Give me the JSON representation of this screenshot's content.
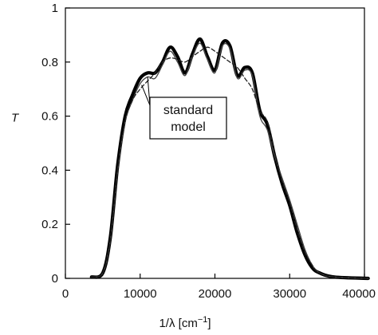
{
  "chart_data": {
    "type": "line",
    "xlabel_main": "1/λ [cm",
    "xlabel_sup": "−1",
    "xlabel_end": "]",
    "ylabel": "T",
    "xlim": [
      0,
      40000
    ],
    "ylim": [
      0,
      1
    ],
    "x_ticks": [
      "0",
      "10000",
      "20000",
      "30000",
      "40000"
    ],
    "y_ticks": [
      "0",
      "0.2",
      "0.4",
      "0.6",
      "0.8",
      "1"
    ],
    "x_tick_values": [
      0,
      10000,
      20000,
      30000,
      40000
    ],
    "y_tick_values": [
      0,
      0.2,
      0.4,
      0.6,
      0.8,
      1
    ],
    "legend": {
      "labels": [
        "standard",
        "model"
      ],
      "placement": "center-left"
    },
    "series": [
      {
        "style": "thick",
        "color": "#000000",
        "points": [
          [
            3500,
            0.005
          ],
          [
            5000,
            0.02
          ],
          [
            6000,
            0.15
          ],
          [
            7000,
            0.42
          ],
          [
            8000,
            0.6
          ],
          [
            9000,
            0.68
          ],
          [
            10000,
            0.74
          ],
          [
            11000,
            0.76
          ],
          [
            12000,
            0.76
          ],
          [
            13000,
            0.8
          ],
          [
            14000,
            0.855
          ],
          [
            15000,
            0.82
          ],
          [
            16000,
            0.76
          ],
          [
            17000,
            0.83
          ],
          [
            18000,
            0.885
          ],
          [
            19000,
            0.82
          ],
          [
            20000,
            0.77
          ],
          [
            21000,
            0.87
          ],
          [
            22000,
            0.86
          ],
          [
            23000,
            0.75
          ],
          [
            24000,
            0.78
          ],
          [
            25000,
            0.76
          ],
          [
            26000,
            0.62
          ],
          [
            27000,
            0.57
          ],
          [
            28000,
            0.45
          ],
          [
            29000,
            0.35
          ],
          [
            30000,
            0.27
          ],
          [
            31000,
            0.17
          ],
          [
            32000,
            0.09
          ],
          [
            33000,
            0.04
          ],
          [
            34000,
            0.02
          ],
          [
            36000,
            0.005
          ],
          [
            40500,
            0.0
          ]
        ]
      },
      {
        "style": "thin",
        "color": "#444444",
        "points": [
          [
            3500,
            0.005
          ],
          [
            5000,
            0.02
          ],
          [
            6000,
            0.14
          ],
          [
            7000,
            0.4
          ],
          [
            8000,
            0.58
          ],
          [
            9000,
            0.66
          ],
          [
            10000,
            0.72
          ],
          [
            11000,
            0.745
          ],
          [
            12000,
            0.74
          ],
          [
            13000,
            0.79
          ],
          [
            14000,
            0.84
          ],
          [
            15000,
            0.8
          ],
          [
            16000,
            0.75
          ],
          [
            17000,
            0.82
          ],
          [
            18000,
            0.87
          ],
          [
            19000,
            0.81
          ],
          [
            20000,
            0.76
          ],
          [
            21000,
            0.86
          ],
          [
            22000,
            0.85
          ],
          [
            23000,
            0.74
          ],
          [
            24000,
            0.77
          ],
          [
            25000,
            0.75
          ],
          [
            26000,
            0.6
          ],
          [
            27000,
            0.55
          ],
          [
            28000,
            0.45
          ],
          [
            29000,
            0.37
          ],
          [
            30000,
            0.29
          ],
          [
            31000,
            0.2
          ],
          [
            32000,
            0.11
          ],
          [
            33000,
            0.05
          ],
          [
            34000,
            0.02
          ],
          [
            36000,
            0.005
          ],
          [
            40500,
            0.0
          ]
        ]
      },
      {
        "style": "dashed",
        "color": "#222222",
        "points": [
          [
            3500,
            0.005
          ],
          [
            5000,
            0.02
          ],
          [
            6000,
            0.14
          ],
          [
            7000,
            0.4
          ],
          [
            8000,
            0.58
          ],
          [
            9000,
            0.66
          ],
          [
            10000,
            0.7
          ],
          [
            11000,
            0.73
          ],
          [
            12000,
            0.76
          ],
          [
            13000,
            0.8
          ],
          [
            14000,
            0.815
          ],
          [
            15000,
            0.81
          ],
          [
            16000,
            0.8
          ],
          [
            17000,
            0.82
          ],
          [
            18000,
            0.84
          ],
          [
            19000,
            0.855
          ],
          [
            20000,
            0.84
          ],
          [
            21000,
            0.82
          ],
          [
            22000,
            0.8
          ],
          [
            23000,
            0.78
          ],
          [
            24000,
            0.74
          ],
          [
            25000,
            0.7
          ],
          [
            26000,
            0.62
          ],
          [
            27000,
            0.58
          ],
          [
            28000,
            0.46
          ],
          [
            29000,
            0.36
          ],
          [
            30000,
            0.28
          ],
          [
            31000,
            0.18
          ],
          [
            32000,
            0.1
          ],
          [
            33000,
            0.05
          ],
          [
            34000,
            0.02
          ],
          [
            36000,
            0.005
          ],
          [
            40500,
            0.0
          ]
        ]
      }
    ]
  }
}
